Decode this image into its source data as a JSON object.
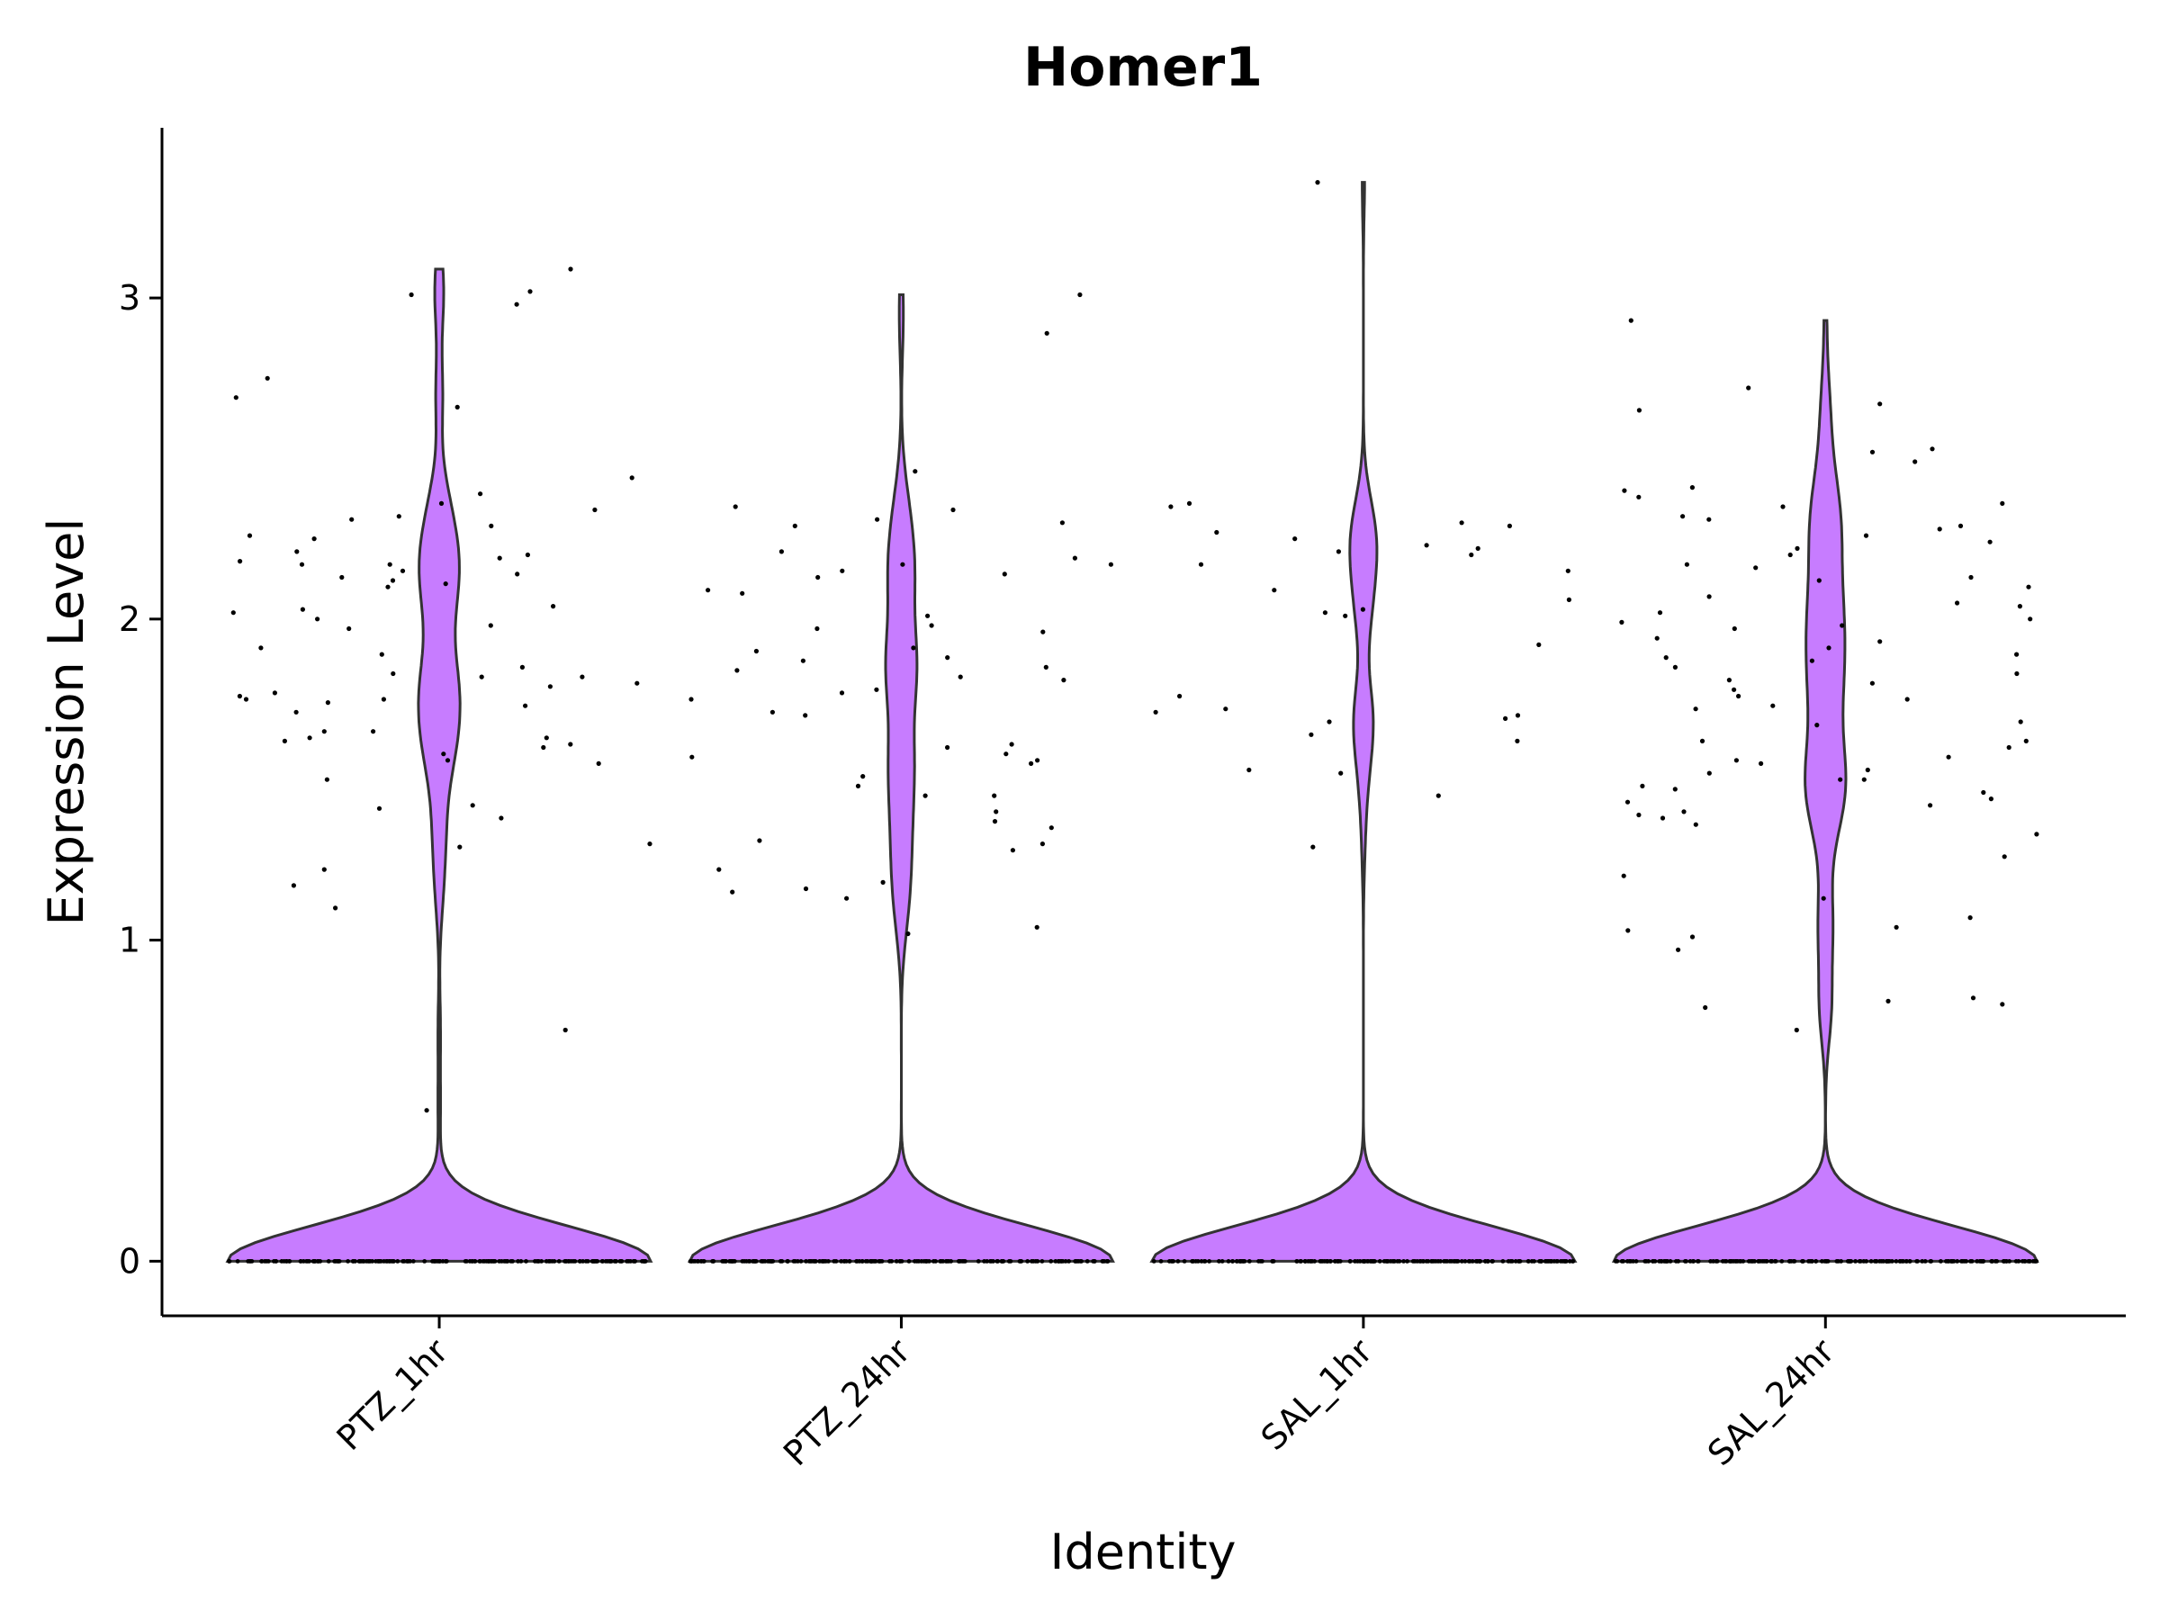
{
  "chart_data": {
    "type": "violin",
    "title": "Homer1",
    "xlabel": "Identity",
    "ylabel": "Expression Level",
    "ylim": [
      -0.17,
      3.53
    ],
    "yticks": [
      0,
      1,
      2,
      3
    ],
    "grid": false,
    "legend": "none",
    "colors": {
      "violin_fill": "#c77cff",
      "violin_stroke": "#333333",
      "points": "#000000"
    },
    "categories": [
      "PTZ_1hr",
      "PTZ_24hr",
      "SAL_1hr",
      "SAL_24hr"
    ],
    "violins": [
      {
        "category": "PTZ_1hr",
        "max": 3.09,
        "zeros": 180,
        "nonzero": [
          0.47,
          0.72,
          1.1,
          1.17,
          1.22,
          1.29,
          1.3,
          1.38,
          1.41,
          1.42,
          1.5,
          1.55,
          1.56,
          1.58,
          1.6,
          1.61,
          1.62,
          1.63,
          1.63,
          1.65,
          1.65,
          1.71,
          1.73,
          1.74,
          1.75,
          1.75,
          1.76,
          1.77,
          1.79,
          1.8,
          1.82,
          1.82,
          1.83,
          1.85,
          1.89,
          1.91,
          1.97,
          1.98,
          2.0,
          2.02,
          2.03,
          2.04,
          2.1,
          2.11,
          2.12,
          2.13,
          2.14,
          2.15,
          2.17,
          2.17,
          2.18,
          2.19,
          2.2,
          2.21,
          2.25,
          2.26,
          2.29,
          2.31,
          2.32,
          2.34,
          2.36,
          2.39,
          2.44,
          2.66,
          2.69,
          2.75,
          2.98,
          3.01,
          3.02,
          3.09
        ]
      },
      {
        "category": "PTZ_24hr",
        "max": 3.01,
        "zeros": 180,
        "nonzero": [
          1.02,
          1.04,
          1.13,
          1.15,
          1.16,
          1.18,
          1.22,
          1.28,
          1.3,
          1.31,
          1.35,
          1.37,
          1.4,
          1.45,
          1.45,
          1.48,
          1.51,
          1.55,
          1.56,
          1.57,
          1.58,
          1.6,
          1.61,
          1.7,
          1.71,
          1.75,
          1.77,
          1.78,
          1.81,
          1.82,
          1.84,
          1.85,
          1.87,
          1.88,
          1.9,
          1.91,
          1.96,
          1.97,
          1.98,
          2.01,
          2.08,
          2.09,
          2.13,
          2.14,
          2.15,
          2.17,
          2.17,
          2.19,
          2.21,
          2.29,
          2.3,
          2.31,
          2.34,
          2.35,
          2.46,
          2.89,
          3.01
        ]
      },
      {
        "category": "SAL_1hr",
        "max": 3.36,
        "zeros": 180,
        "nonzero": [
          1.29,
          1.45,
          1.52,
          1.53,
          1.62,
          1.64,
          1.68,
          1.69,
          1.7,
          1.71,
          1.72,
          1.76,
          1.92,
          2.01,
          2.02,
          2.03,
          2.06,
          2.09,
          2.15,
          2.17,
          2.2,
          2.21,
          2.22,
          2.23,
          2.25,
          2.27,
          2.29,
          2.3,
          2.35,
          2.36,
          3.36
        ]
      },
      {
        "category": "SAL_24hr",
        "max": 2.93,
        "zeros": 180,
        "nonzero": [
          0.72,
          0.79,
          0.8,
          0.81,
          0.82,
          0.97,
          1.01,
          1.03,
          1.04,
          1.07,
          1.13,
          1.2,
          1.26,
          1.33,
          1.36,
          1.38,
          1.39,
          1.4,
          1.42,
          1.43,
          1.44,
          1.46,
          1.47,
          1.48,
          1.5,
          1.5,
          1.52,
          1.53,
          1.55,
          1.56,
          1.57,
          1.6,
          1.62,
          1.62,
          1.67,
          1.68,
          1.72,
          1.73,
          1.75,
          1.76,
          1.78,
          1.8,
          1.81,
          1.83,
          1.85,
          1.87,
          1.88,
          1.89,
          1.91,
          1.93,
          1.94,
          1.97,
          1.98,
          1.99,
          2.0,
          2.02,
          2.04,
          2.05,
          2.07,
          2.1,
          2.12,
          2.13,
          2.16,
          2.17,
          2.2,
          2.22,
          2.24,
          2.26,
          2.28,
          2.29,
          2.31,
          2.32,
          2.35,
          2.36,
          2.38,
          2.4,
          2.41,
          2.49,
          2.52,
          2.53,
          2.65,
          2.67,
          2.72,
          2.93
        ]
      }
    ]
  }
}
